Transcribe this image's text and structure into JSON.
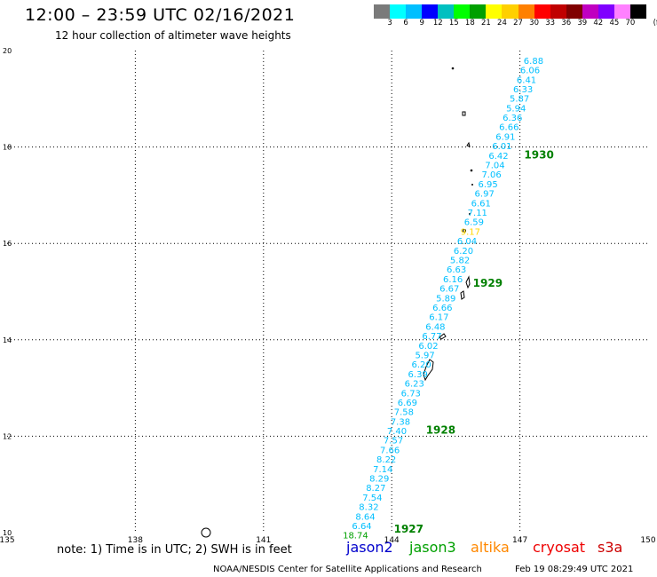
{
  "title": "12:00 – 23:59 UTC 02/16/2021",
  "subtitle": "12 hour collection of altimeter wave heights",
  "colorbar": {
    "colors": [
      "#7a7a7a",
      "#00ffff",
      "#00bfff",
      "#0000ff",
      "#00c0c0",
      "#00ff00",
      "#00a000",
      "#ffff00",
      "#ffd000",
      "#ff8000",
      "#ff0000",
      "#c00000",
      "#800000",
      "#c000c0",
      "#8000ff",
      "#ff80ff",
      "#000000"
    ],
    "labels": [
      "3",
      "6",
      "9",
      "12",
      "15",
      "18",
      "21",
      "24",
      "27",
      "30",
      "33",
      "36",
      "39",
      "42",
      "45",
      "70",
      "(ft)"
    ]
  },
  "axes": {
    "lon_ticks": [
      "135",
      "138",
      "141",
      "144",
      "147",
      "150"
    ],
    "lat_ticks": [
      "10",
      "12",
      "14",
      "16",
      "18",
      "20"
    ]
  },
  "track": {
    "labels": [
      "6.88",
      "6.06",
      "6.41",
      "6.33",
      "5.87",
      "5.94",
      "6.36",
      "6.66",
      "6.91",
      "6.01",
      "6.42",
      "7.04",
      "7.06",
      "6.95",
      "6.97",
      "6.61",
      "7.11",
      "6.59",
      "9.17",
      "6.04",
      "6.20",
      "5.82",
      "6.63",
      "6.16",
      "6.67",
      "5.89",
      "6.66",
      "6.17",
      "6.48",
      "6.77",
      "6.02",
      "5.97",
      "6.20",
      "6.39",
      "6.23",
      "6.73",
      "6.69",
      "7.58",
      "7.38",
      "7.40",
      "7.57",
      "7.66",
      "8.22",
      "7.14",
      "8.29",
      "8.27",
      "7.54",
      "8.32",
      "8.64",
      "6.64",
      "18.74"
    ]
  },
  "passes": [
    {
      "text": "1930",
      "lon": 147.1,
      "lat": 17.76
    },
    {
      "text": "1929",
      "lon": 145.9,
      "lat": 15.1
    },
    {
      "text": "1928",
      "lon": 144.8,
      "lat": 12.05
    },
    {
      "text": "1927",
      "lon": 144.05,
      "lat": 10.0
    }
  ],
  "note": "note: 1) Time is in UTC; 2) SWH is in feet",
  "legend": [
    {
      "name": "jason2",
      "color": "#0000cc"
    },
    {
      "name": "jason3",
      "color": "#00a000"
    },
    {
      "name": "altika",
      "color": "#ff8800"
    },
    {
      "name": "cryosat",
      "color": "#ee0000"
    },
    {
      "name": "s3a",
      "color": "#cc0000"
    }
  ],
  "credit": "NOAA/NESDIS Center for Satellite Applications and Research",
  "timestamp": "Feb 19 08:29:49 UTC 2021"
}
